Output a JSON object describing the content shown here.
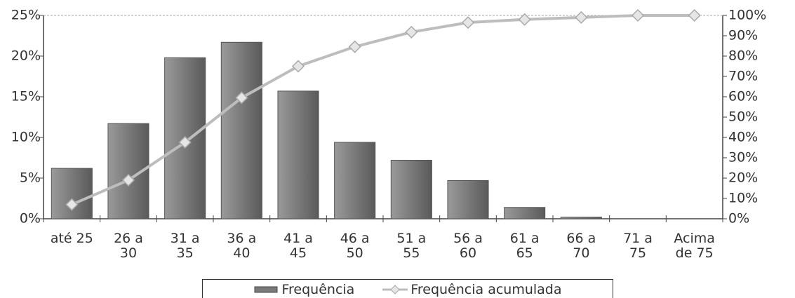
{
  "chart_data": {
    "type": "bar_line",
    "categories": [
      "até 25",
      "26 a\n30",
      "31 a\n35",
      "36 a\n40",
      "41 a\n45",
      "46 a\n50",
      "51 a\n55",
      "56 a\n60",
      "61 a\n65",
      "66 a\n70",
      "71 a\n75",
      "Acima\nde 75"
    ],
    "series": [
      {
        "name": "Frequência",
        "color": "#7a7a7a",
        "values": [
          6.2,
          11.7,
          19.8,
          21.7,
          15.7,
          9.4,
          7.2,
          4.7,
          1.4,
          0.2,
          0,
          0
        ]
      },
      {
        "name": "Frequência acumulada",
        "color": "#bdbdbd",
        "axis": "y2",
        "values": [
          7,
          19,
          37.6,
          59.5,
          75,
          84.6,
          91.8,
          96.5,
          98,
          99,
          100,
          100
        ]
      }
    ],
    "ylim": [
      0,
      25
    ],
    "yticks": [
      {
        "value": 0,
        "label": "0%"
      },
      {
        "value": 5,
        "label": "5%"
      },
      {
        "value": 10,
        "label": "10%"
      },
      {
        "value": 15,
        "label": "15%"
      },
      {
        "value": 20,
        "label": "20%"
      },
      {
        "value": 25,
        "label": "25%"
      }
    ],
    "y2lim": [
      0,
      100
    ],
    "y2ticks": [
      {
        "value": 0,
        "label": "0%"
      },
      {
        "value": 10,
        "label": "10%"
      },
      {
        "value": 20,
        "label": "20%"
      },
      {
        "value": 30,
        "label": "30%"
      },
      {
        "value": 40,
        "label": "40%"
      },
      {
        "value": 50,
        "label": "50%"
      },
      {
        "value": 60,
        "label": "60%"
      },
      {
        "value": 70,
        "label": "70%"
      },
      {
        "value": 80,
        "label": "80%"
      },
      {
        "value": 90,
        "label": "90%"
      },
      {
        "value": {
          "value": 100,
          "label": "100%"
        },
        "label": "100%"
      }
    ],
    "legend": "bottom"
  }
}
